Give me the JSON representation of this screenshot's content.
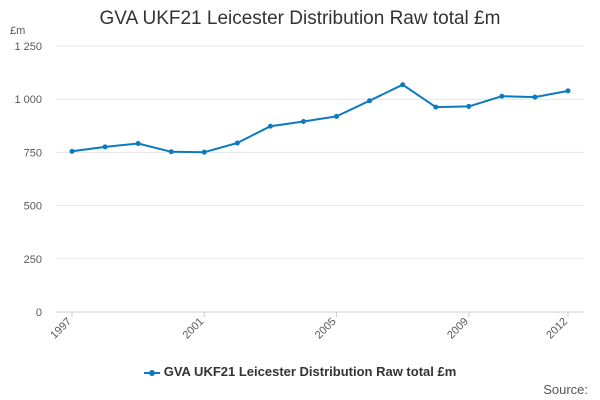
{
  "chart_data": {
    "type": "line",
    "title": "GVA UKF21 Leicester Distribution Raw total £m",
    "ylabel": "£m",
    "xlabel": "",
    "ylim": [
      0,
      1250
    ],
    "yticks": [
      0,
      250,
      500,
      750,
      1000,
      1250
    ],
    "ytick_labels": [
      "0",
      "250",
      "500",
      "750",
      "1 000",
      "1 250"
    ],
    "x": [
      1997,
      1998,
      1999,
      2000,
      2001,
      2002,
      2003,
      2004,
      2005,
      2006,
      2007,
      2008,
      2009,
      2010,
      2011,
      2012
    ],
    "xtick_labels": [
      "1997",
      "2001",
      "2005",
      "2009",
      "2012"
    ],
    "series": [
      {
        "name": "GVA UKF21 Leicester Distribution Raw total £m",
        "color": "#0b7ac0",
        "values": [
          755,
          776,
          792,
          753,
          751,
          794,
          873,
          895,
          919,
          993,
          1068,
          963,
          966,
          1014,
          1010,
          1039
        ]
      }
    ],
    "grid": true,
    "legend_position": "bottom-center"
  },
  "source_label": "Source:"
}
